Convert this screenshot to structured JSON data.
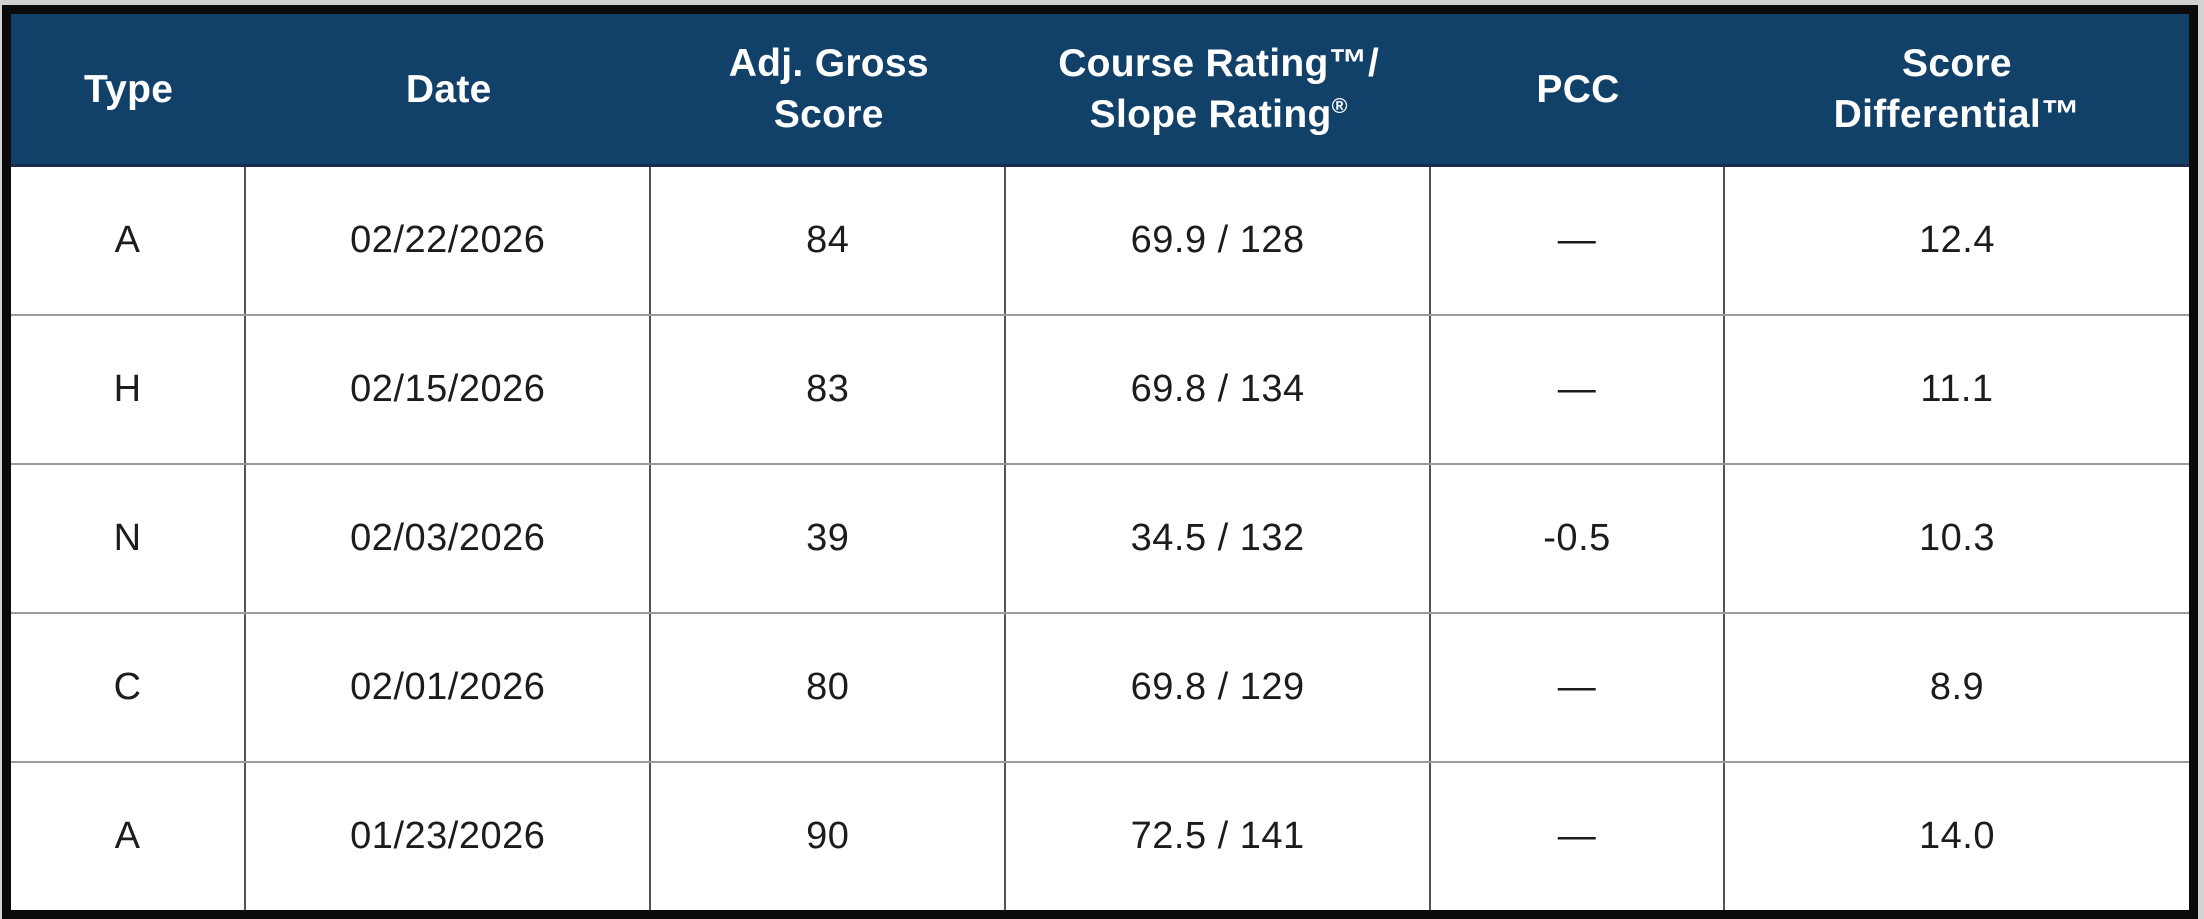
{
  "table": {
    "columns": [
      {
        "id": "type",
        "width_pct": 10.8,
        "header_lines": [
          "Type"
        ]
      },
      {
        "id": "date",
        "width_pct": 18.6,
        "header_lines": [
          "Date"
        ]
      },
      {
        "id": "adj-gross-score",
        "width_pct": 16.3,
        "header_lines": [
          "Adj. Gross",
          "Score"
        ]
      },
      {
        "id": "course-slope-rating",
        "width_pct": 19.5,
        "header_lines": [
          "Course Rating™/",
          "Slope Rating®"
        ]
      },
      {
        "id": "pcc",
        "width_pct": 13.5,
        "header_lines": [
          "PCC"
        ]
      },
      {
        "id": "score-differential",
        "width_pct": 21.3,
        "header_lines": [
          "Score",
          "Differential™"
        ]
      }
    ],
    "rows": [
      [
        "A",
        "02/22/2026",
        "84",
        "69.9 / 128",
        "—",
        "12.4"
      ],
      [
        "H",
        "02/15/2026",
        "83",
        "69.8 / 134",
        "—",
        "11.1"
      ],
      [
        "N",
        "02/03/2026",
        "39",
        "34.5 / 132",
        "-0.5",
        "10.3"
      ],
      [
        "C",
        "02/01/2026",
        "80",
        "69.8 / 129",
        "—",
        "8.9"
      ],
      [
        "A",
        "01/23/2026",
        "90",
        "72.5 / 141",
        "—",
        "14.0"
      ]
    ]
  },
  "colors": {
    "header_bg": "#114069",
    "header_text": "#FFFFFF",
    "body_text": "#1C1C1C",
    "outer_border": "#0B0B0B",
    "page_margin": "#D2D2D2",
    "col_divider": "#535353",
    "row_divider": "#9B9B9B"
  }
}
